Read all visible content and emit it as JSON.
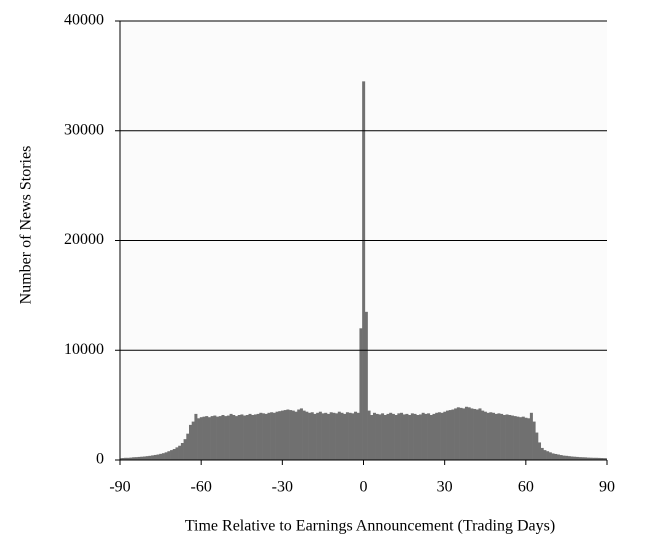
{
  "chart_data": {
    "type": "bar",
    "x_label": "Time Relative to Earnings Announcement (Trading Days)",
    "y_label": "Number of News Stories",
    "x": [
      -90,
      -89,
      -88,
      -87,
      -86,
      -85,
      -84,
      -83,
      -82,
      -81,
      -80,
      -79,
      -78,
      -77,
      -76,
      -75,
      -74,
      -73,
      -72,
      -71,
      -70,
      -69,
      -68,
      -67,
      -66,
      -65,
      -64,
      -63,
      -62,
      -61,
      -60,
      -59,
      -58,
      -57,
      -56,
      -55,
      -54,
      -53,
      -52,
      -51,
      -50,
      -49,
      -48,
      -47,
      -46,
      -45,
      -44,
      -43,
      -42,
      -41,
      -40,
      -39,
      -38,
      -37,
      -36,
      -35,
      -34,
      -33,
      -32,
      -31,
      -30,
      -29,
      -28,
      -27,
      -26,
      -25,
      -24,
      -23,
      -22,
      -21,
      -20,
      -19,
      -18,
      -17,
      -16,
      -15,
      -14,
      -13,
      -12,
      -11,
      -10,
      -9,
      -8,
      -7,
      -6,
      -5,
      -4,
      -3,
      -2,
      -1,
      0,
      1,
      2,
      3,
      4,
      5,
      6,
      7,
      8,
      9,
      10,
      11,
      12,
      13,
      14,
      15,
      16,
      17,
      18,
      19,
      20,
      21,
      22,
      23,
      24,
      25,
      26,
      27,
      28,
      29,
      30,
      31,
      32,
      33,
      34,
      35,
      36,
      37,
      38,
      39,
      40,
      41,
      42,
      43,
      44,
      45,
      46,
      47,
      48,
      49,
      50,
      51,
      52,
      53,
      54,
      55,
      56,
      57,
      58,
      59,
      60,
      61,
      62,
      63,
      64,
      65,
      66,
      67,
      68,
      69,
      70,
      71,
      72,
      73,
      74,
      75,
      76,
      77,
      78,
      79,
      80,
      81,
      82,
      83,
      84,
      85,
      86,
      87,
      88,
      89,
      90
    ],
    "values": [
      150,
      180,
      200,
      200,
      220,
      250,
      260,
      280,
      300,
      320,
      350,
      380,
      420,
      460,
      500,
      560,
      620,
      700,
      800,
      900,
      1000,
      1150,
      1300,
      1550,
      1900,
      2400,
      3200,
      3500,
      4200,
      3800,
      3900,
      3950,
      4000,
      3900,
      4000,
      4050,
      3950,
      4000,
      4100,
      4000,
      4050,
      4200,
      4100,
      4000,
      4100,
      4150,
      4050,
      4100,
      4200,
      4100,
      4150,
      4200,
      4300,
      4250,
      4200,
      4300,
      4350,
      4300,
      4400,
      4450,
      4500,
      4550,
      4600,
      4550,
      4500,
      4400,
      4600,
      4700,
      4500,
      4400,
      4300,
      4350,
      4200,
      4300,
      4400,
      4250,
      4300,
      4200,
      4350,
      4300,
      4250,
      4400,
      4300,
      4200,
      4350,
      4300,
      4250,
      4400,
      4300,
      12000,
      34500,
      13500,
      4500,
      4100,
      4300,
      4200,
      4150,
      4250,
      4100,
      4200,
      4300,
      4200,
      4100,
      4250,
      4300,
      4150,
      4200,
      4100,
      4250,
      4200,
      4100,
      4150,
      4300,
      4200,
      4250,
      4100,
      4200,
      4300,
      4350,
      4300,
      4400,
      4500,
      4550,
      4600,
      4700,
      4800,
      4750,
      4700,
      4850,
      4800,
      4700,
      4650,
      4600,
      4700,
      4500,
      4400,
      4300,
      4350,
      4300,
      4200,
      4250,
      4200,
      4100,
      4150,
      4100,
      4050,
      4000,
      3950,
      3900,
      3950,
      3850,
      3800,
      4300,
      3500,
      2500,
      1600,
      1100,
      900,
      800,
      700,
      600,
      550,
      500,
      450,
      400,
      380,
      350,
      320,
      300,
      280,
      260,
      250,
      240,
      220,
      210,
      200,
      200,
      190,
      180,
      170,
      160
    ],
    "color": "#707070",
    "xlim": [
      -90,
      90
    ],
    "xticks": [
      -90,
      -60,
      -30,
      0,
      30,
      60,
      90
    ],
    "ylim": [
      0,
      40000
    ],
    "yticks": [
      0,
      10000,
      20000,
      30000,
      40000
    ],
    "grid": true
  }
}
